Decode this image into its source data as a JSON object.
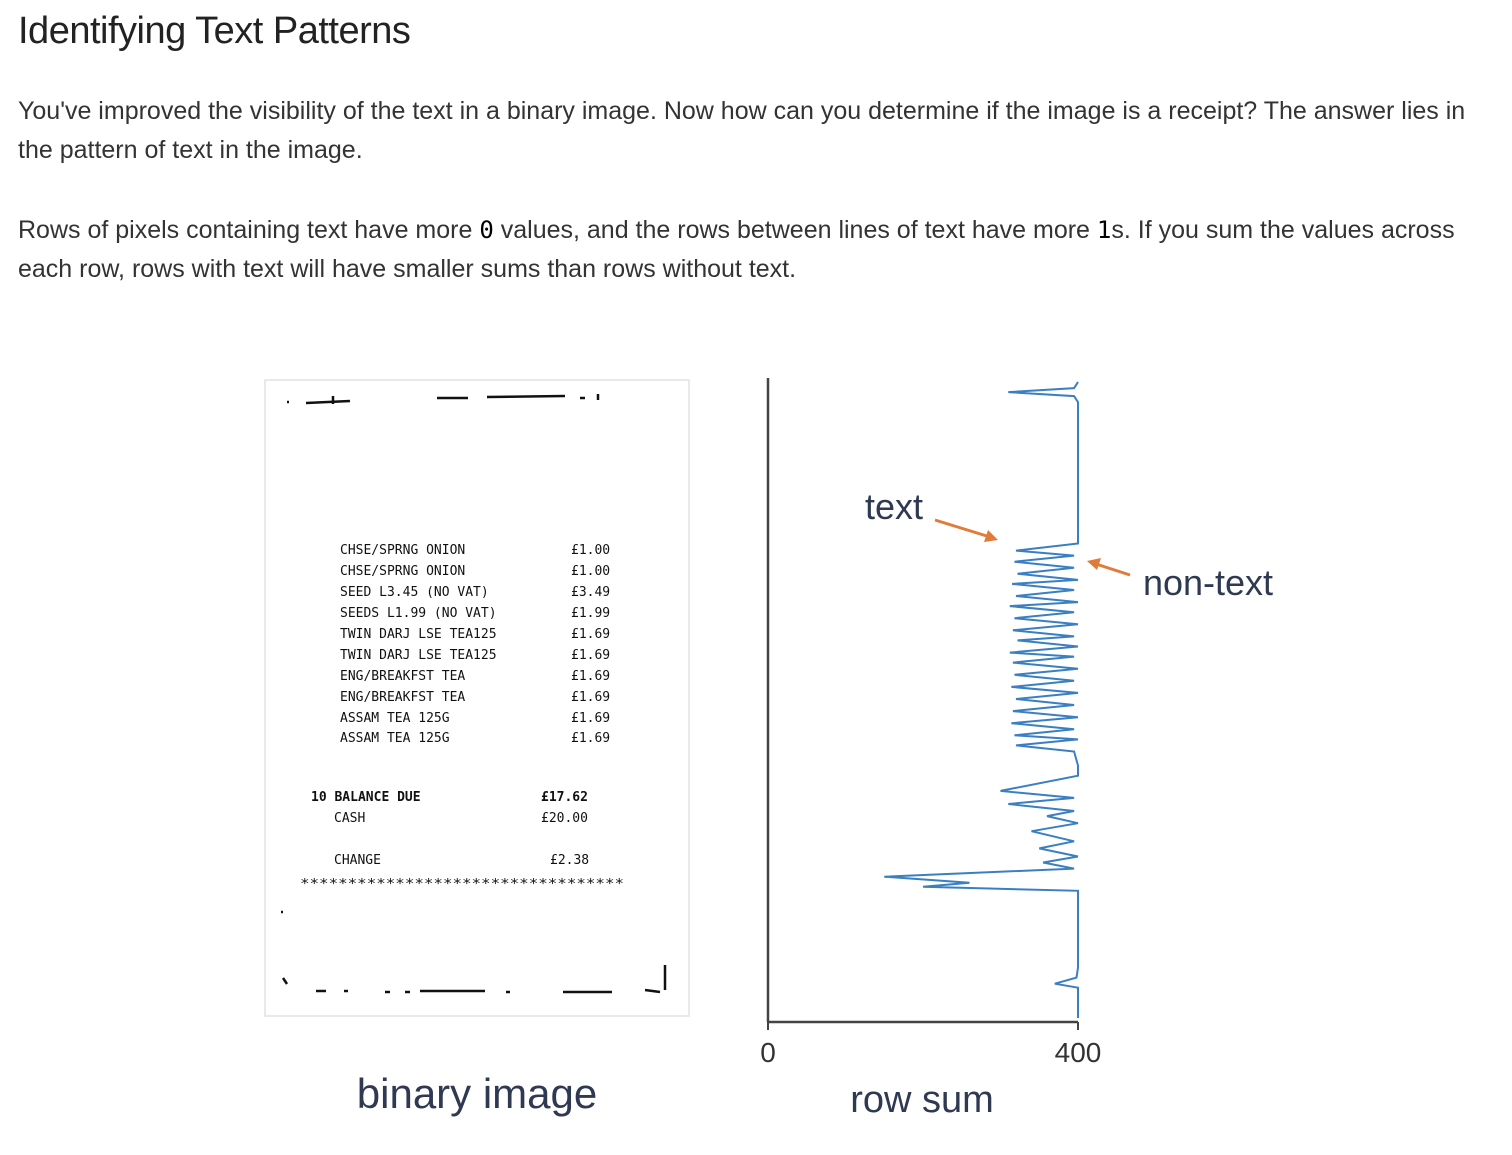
{
  "page": {
    "title": "Identifying Text Patterns",
    "paragraph1": "You've improved the visibility of the text in a binary image. Now how can you determine if the image is a receipt? The answer lies in the pattern of text in the image.",
    "paragraph2": {
      "part1": "Rows of pixels containing text have more ",
      "code1": "0",
      "part2": " values, and the rows between lines of text have more ",
      "code2": "1",
      "part3": "s. If you sum the values across each row, rows with text will have smaller sums than rows without text."
    }
  },
  "figure": {
    "receipt_caption": "binary image",
    "receipt_items": [
      {
        "name": "CHSE/SPRNG ONION",
        "price": "£1.00"
      },
      {
        "name": "CHSE/SPRNG ONION",
        "price": "£1.00"
      },
      {
        "name": "SEED L3.45 (NO VAT)",
        "price": "£3.49"
      },
      {
        "name": "SEEDS L1.99 (NO VAT)",
        "price": "£1.99"
      },
      {
        "name": "TWIN DARJ LSE TEA125",
        "price": "£1.69"
      },
      {
        "name": "TWIN DARJ LSE TEA125",
        "price": "£1.69"
      },
      {
        "name": "ENG/BREAKFST TEA",
        "price": "£1.69"
      },
      {
        "name": "ENG/BREAKFST TEA",
        "price": "£1.69"
      },
      {
        "name": "ASSAM TEA 125G",
        "price": "£1.69"
      },
      {
        "name": "ASSAM TEA 125G",
        "price": "£1.69"
      }
    ],
    "balance_label": "10 BALANCE DUE",
    "balance_value": "£17.62",
    "cash_label": "CASH",
    "cash_value": "£20.00",
    "change_label": "CHANGE",
    "change_value": "£2.38",
    "stars": "**********************************"
  },
  "chart_data": {
    "type": "line",
    "orientation": "horizontal-profile",
    "xlabel": "row sum",
    "ylabel": "",
    "xlim": [
      0,
      400
    ],
    "x_ticks": [
      "0",
      "400"
    ],
    "annotations": [
      "text",
      "non-text"
    ],
    "colors": {
      "line": "#3a7fc1",
      "arrow": "#e07b39",
      "axis": "#444444"
    },
    "rows": [
      0,
      6,
      10,
      14,
      20,
      60,
      100,
      130,
      160,
      167,
      172,
      178,
      184,
      190,
      196,
      200,
      206,
      212,
      218,
      222,
      228,
      234,
      240,
      246,
      252,
      256,
      262,
      268,
      272,
      278,
      284,
      290,
      296,
      302,
      308,
      314,
      320,
      326,
      332,
      338,
      344,
      350,
      354,
      360,
      366,
      380,
      390,
      405,
      412,
      418,
      425,
      430,
      437,
      445,
      455,
      462,
      470,
      476,
      482,
      490,
      496,
      500,
      504,
      520,
      560,
      580,
      590,
      596,
      600,
      608,
      620,
      630
    ],
    "sums": [
      400,
      395,
      310,
      395,
      400,
      400,
      400,
      400,
      400,
      320,
      395,
      318,
      395,
      322,
      400,
      315,
      395,
      320,
      400,
      312,
      395,
      318,
      400,
      316,
      395,
      322,
      400,
      312,
      395,
      316,
      400,
      318,
      395,
      314,
      400,
      320,
      395,
      316,
      400,
      314,
      395,
      318,
      400,
      320,
      395,
      400,
      400,
      300,
      395,
      310,
      395,
      360,
      400,
      340,
      395,
      350,
      400,
      355,
      395,
      150,
      260,
      200,
      400,
      400,
      400,
      400,
      398,
      370,
      400,
      400,
      400,
      400
    ]
  }
}
